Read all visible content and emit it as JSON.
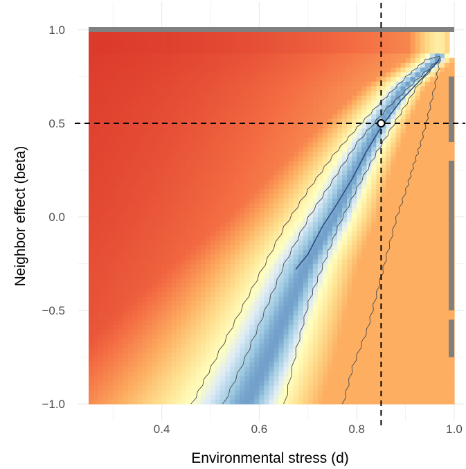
{
  "chart_data": {
    "type": "heatmap",
    "title": "",
    "xlabel": "Environmental stress (d)",
    "ylabel": "Neighbor effect (beta)",
    "xlim": [
      0.25,
      1.0
    ],
    "ylim": [
      -1.0,
      1.0
    ],
    "x_ticks": [
      {
        "value": 0.4,
        "label": "0.4"
      },
      {
        "value": 0.6,
        "label": "0.6"
      },
      {
        "value": 0.8,
        "label": "0.8"
      },
      {
        "value": 1.0,
        "label": "1.0"
      }
    ],
    "y_ticks": [
      {
        "value": 1.0,
        "label": "1.0"
      },
      {
        "value": 0.5,
        "label": "0.5"
      },
      {
        "value": 0.0,
        "label": "0.0"
      },
      {
        "value": -0.5,
        "label": "−0.5"
      },
      {
        "value": -1.0,
        "label": "−1.0"
      }
    ],
    "grid": true,
    "reference_point": {
      "x": 0.85,
      "y": 0.5
    },
    "reference_lines": {
      "vertical_x": 0.85,
      "horizontal_y": 0.5
    },
    "ridge_points": [
      [
        0.575,
        -1.0
      ],
      [
        0.62,
        -0.75
      ],
      [
        0.66,
        -0.5
      ],
      [
        0.7,
        -0.25
      ],
      [
        0.755,
        0.0
      ],
      [
        0.8,
        0.25
      ],
      [
        0.85,
        0.5
      ],
      [
        0.9,
        0.7
      ],
      [
        0.97,
        0.85
      ]
    ],
    "inner_contour_center": [
      [
        0.675,
        -0.28
      ],
      [
        0.7,
        -0.2
      ],
      [
        0.73,
        -0.05
      ],
      [
        0.755,
        0.05
      ],
      [
        0.79,
        0.2
      ],
      [
        0.82,
        0.35
      ],
      [
        0.85,
        0.48
      ],
      [
        0.89,
        0.62
      ],
      [
        0.97,
        0.84
      ]
    ],
    "outer_contour_left": [
      [
        0.46,
        -1.0
      ],
      [
        0.5,
        -0.8
      ],
      [
        0.55,
        -0.55
      ],
      [
        0.6,
        -0.3
      ],
      [
        0.65,
        -0.05
      ],
      [
        0.7,
        0.15
      ],
      [
        0.75,
        0.33
      ],
      [
        0.8,
        0.48
      ],
      [
        0.85,
        0.62
      ],
      [
        0.9,
        0.75
      ],
      [
        0.94,
        0.84
      ],
      [
        0.97,
        0.86
      ]
    ],
    "outer_contour_right": [
      [
        0.97,
        0.86
      ],
      [
        0.96,
        0.72
      ],
      [
        0.945,
        0.55
      ],
      [
        0.93,
        0.4
      ],
      [
        0.915,
        0.28
      ],
      [
        0.9,
        0.15
      ],
      [
        0.88,
        0.0
      ],
      [
        0.86,
        -0.2
      ],
      [
        0.84,
        -0.4
      ],
      [
        0.82,
        -0.6
      ],
      [
        0.79,
        -0.8
      ],
      [
        0.77,
        -1.0
      ]
    ],
    "mid_contour_left": [
      [
        0.525,
        -1.0
      ],
      [
        0.57,
        -0.75
      ],
      [
        0.61,
        -0.5
      ],
      [
        0.65,
        -0.25
      ],
      [
        0.7,
        0.0
      ],
      [
        0.75,
        0.2
      ],
      [
        0.8,
        0.4
      ],
      [
        0.86,
        0.58
      ],
      [
        0.92,
        0.73
      ],
      [
        0.97,
        0.85
      ]
    ],
    "mid_contour_right": [
      [
        0.97,
        0.85
      ],
      [
        0.92,
        0.69
      ],
      [
        0.88,
        0.52
      ],
      [
        0.84,
        0.35
      ],
      [
        0.8,
        0.16
      ],
      [
        0.76,
        -0.05
      ],
      [
        0.73,
        -0.25
      ],
      [
        0.7,
        -0.45
      ],
      [
        0.675,
        -0.7
      ],
      [
        0.65,
        -1.0
      ]
    ],
    "color_scale": {
      "low": "#d73027",
      "mid_low": "#f46d43",
      "mid": "#fdae61",
      "mid_high": "#fee090",
      "near_ridge": "#ffffbf",
      "high": "#4575b4"
    },
    "right_strip_color": "#808080",
    "top_strip_color": "#808080"
  }
}
